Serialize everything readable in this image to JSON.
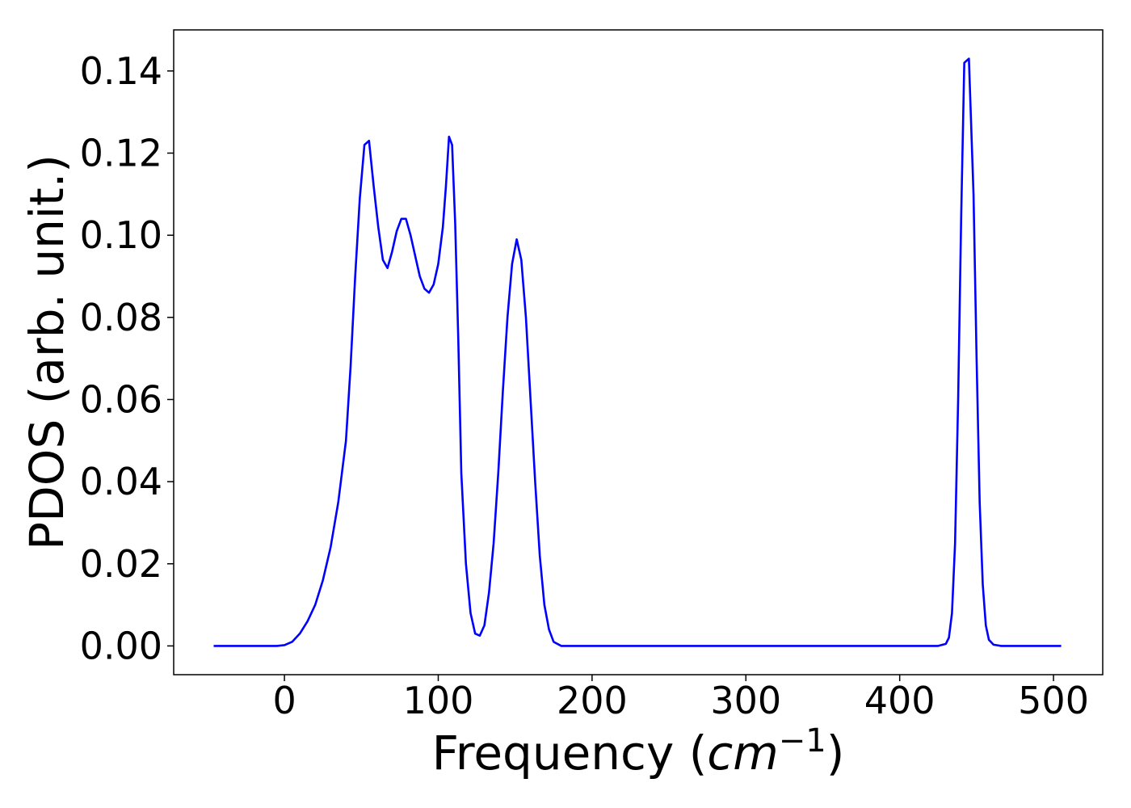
{
  "chart_data": {
    "type": "line",
    "xlabel_main": "Frequency (",
    "xlabel_math": "cm",
    "xlabel_sup": "−1",
    "xlabel_close": ")",
    "ylabel": "PDOS (arb. unit.)",
    "xlim": [
      -72,
      532
    ],
    "ylim": [
      -0.007,
      0.15
    ],
    "x_ticks": [
      0,
      100,
      200,
      300,
      400,
      500
    ],
    "x_tick_labels": [
      "0",
      "100",
      "200",
      "300",
      "400",
      "500"
    ],
    "y_ticks": [
      0.0,
      0.02,
      0.04,
      0.06,
      0.08,
      0.1,
      0.12,
      0.14
    ],
    "y_tick_labels": [
      "0.00",
      "0.02",
      "0.04",
      "0.06",
      "0.08",
      "0.10",
      "0.12",
      "0.14"
    ],
    "grid": false,
    "series": [
      {
        "color": "#0000ff",
        "points": [
          [
            -46,
            0
          ],
          [
            -20,
            0
          ],
          [
            -5,
            0
          ],
          [
            0,
            0.0002
          ],
          [
            5,
            0.001
          ],
          [
            10,
            0.003
          ],
          [
            15,
            0.006
          ],
          [
            20,
            0.01
          ],
          [
            25,
            0.016
          ],
          [
            30,
            0.024
          ],
          [
            35,
            0.035
          ],
          [
            40,
            0.05
          ],
          [
            43,
            0.068
          ],
          [
            46,
            0.09
          ],
          [
            49,
            0.109
          ],
          [
            52,
            0.122
          ],
          [
            55,
            0.123
          ],
          [
            58,
            0.112
          ],
          [
            61,
            0.102
          ],
          [
            64,
            0.094
          ],
          [
            67,
            0.092
          ],
          [
            70,
            0.096
          ],
          [
            73,
            0.101
          ],
          [
            76,
            0.104
          ],
          [
            79,
            0.104
          ],
          [
            82,
            0.1
          ],
          [
            85,
            0.095
          ],
          [
            88,
            0.09
          ],
          [
            91,
            0.087
          ],
          [
            94,
            0.086
          ],
          [
            97,
            0.088
          ],
          [
            100,
            0.093
          ],
          [
            103,
            0.102
          ],
          [
            105,
            0.112
          ],
          [
            107,
            0.124
          ],
          [
            109,
            0.122
          ],
          [
            111,
            0.103
          ],
          [
            113,
            0.075
          ],
          [
            115,
            0.042
          ],
          [
            118,
            0.02
          ],
          [
            121,
            0.008
          ],
          [
            124,
            0.003
          ],
          [
            127,
            0.0025
          ],
          [
            130,
            0.005
          ],
          [
            133,
            0.013
          ],
          [
            136,
            0.025
          ],
          [
            139,
            0.042
          ],
          [
            142,
            0.062
          ],
          [
            145,
            0.08
          ],
          [
            148,
            0.093
          ],
          [
            151,
            0.099
          ],
          [
            154,
            0.094
          ],
          [
            157,
            0.08
          ],
          [
            160,
            0.06
          ],
          [
            163,
            0.04
          ],
          [
            166,
            0.022
          ],
          [
            169,
            0.01
          ],
          [
            172,
            0.004
          ],
          [
            175,
            0.001
          ],
          [
            180,
            0
          ],
          [
            250,
            0
          ],
          [
            350,
            0
          ],
          [
            425,
            0
          ],
          [
            430,
            0.0005
          ],
          [
            432,
            0.002
          ],
          [
            434,
            0.008
          ],
          [
            436,
            0.025
          ],
          [
            438,
            0.06
          ],
          [
            440,
            0.105
          ],
          [
            442,
            0.142
          ],
          [
            445,
            0.143
          ],
          [
            448,
            0.11
          ],
          [
            450,
            0.07
          ],
          [
            452,
            0.035
          ],
          [
            454,
            0.015
          ],
          [
            456,
            0.005
          ],
          [
            458,
            0.0015
          ],
          [
            461,
            0.0003
          ],
          [
            466,
            0
          ],
          [
            505,
            0
          ]
        ]
      }
    ]
  }
}
